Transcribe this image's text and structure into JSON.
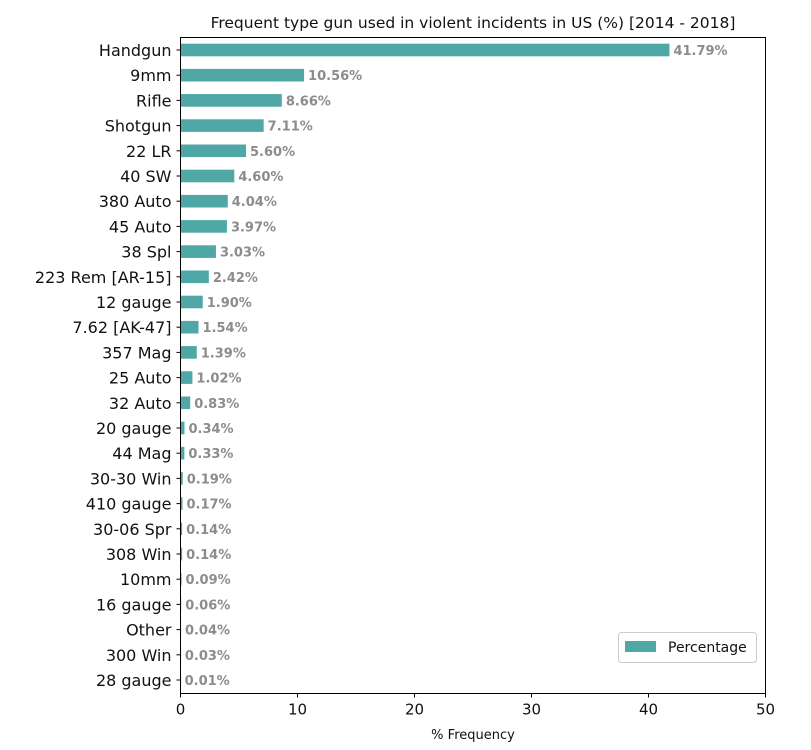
{
  "chart_data": {
    "type": "bar",
    "orientation": "horizontal",
    "title": "Frequent type gun used in violent incidents in US (%) [2014 - 2018]",
    "xlabel": "% Frequency",
    "ylabel": "",
    "xlim": [
      0,
      50
    ],
    "xticks": [
      0,
      10,
      20,
      30,
      40,
      50
    ],
    "grid": false,
    "legend_position": "bottom-right",
    "bar_color": "#4fa8a6",
    "categories": [
      "Handgun",
      "9mm",
      "Rifle",
      "Shotgun",
      "22 LR",
      "40 SW",
      "380 Auto",
      "45 Auto",
      "38 Spl",
      "223 Rem [AR-15]",
      "12 gauge",
      "7.62 [AK-47]",
      "357 Mag",
      "25 Auto",
      "32 Auto",
      "20 gauge",
      "44 Mag",
      "30-30 Win",
      "410 gauge",
      "30-06 Spr",
      "308 Win",
      "10mm",
      "16 gauge",
      "Other",
      "300 Win",
      "28 gauge"
    ],
    "series": [
      {
        "name": "Percentage",
        "values": [
          41.79,
          10.56,
          8.66,
          7.11,
          5.6,
          4.6,
          4.04,
          3.97,
          3.03,
          2.42,
          1.9,
          1.54,
          1.39,
          1.02,
          0.83,
          0.34,
          0.33,
          0.19,
          0.17,
          0.14,
          0.14,
          0.09,
          0.06,
          0.04,
          0.03,
          0.01
        ],
        "data_labels": [
          "41.79%",
          "10.56%",
          "8.66%",
          "7.11%",
          "5.60%",
          "4.60%",
          "4.04%",
          "3.97%",
          "3.03%",
          "2.42%",
          "1.90%",
          "1.54%",
          "1.39%",
          "1.02%",
          "0.83%",
          "0.34%",
          "0.33%",
          "0.19%",
          "0.17%",
          "0.14%",
          "0.14%",
          "0.09%",
          "0.06%",
          "0.04%",
          "0.03%",
          "0.01%"
        ]
      }
    ]
  }
}
